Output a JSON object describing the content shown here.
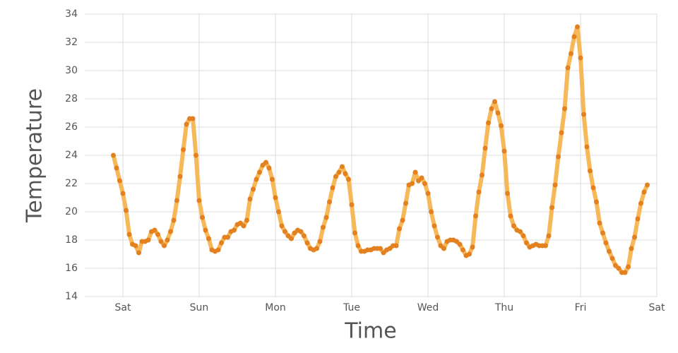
{
  "chart_data": {
    "type": "line",
    "x_label": "Time",
    "y_label": "Temperature",
    "x": [
      -3,
      -2,
      -1,
      0,
      1,
      2,
      3,
      4,
      5,
      6,
      7,
      8,
      9,
      10,
      11,
      12,
      13,
      14,
      15,
      16,
      17,
      18,
      19,
      20,
      21,
      22,
      23,
      24,
      25,
      26,
      27,
      28,
      29,
      30,
      31,
      32,
      33,
      34,
      35,
      36,
      37,
      38,
      39,
      40,
      41,
      42,
      43,
      44,
      45,
      46,
      47,
      48,
      49,
      50,
      51,
      52,
      53,
      54,
      55,
      56,
      57,
      58,
      59,
      60,
      61,
      62,
      63,
      64,
      65,
      66,
      67,
      68,
      69,
      70,
      71,
      72,
      73,
      74,
      75,
      76,
      77,
      78,
      79,
      80,
      81,
      82,
      83,
      84,
      85,
      86,
      87,
      88,
      89,
      90,
      91,
      92,
      93,
      94,
      95,
      96,
      97,
      98,
      99,
      100,
      101,
      102,
      103,
      104,
      105,
      106,
      107,
      108,
      109,
      110,
      111,
      112,
      113,
      114,
      115,
      116,
      117,
      118,
      119,
      120,
      121,
      122,
      123,
      124,
      125,
      126,
      127,
      128,
      129,
      130,
      131,
      132,
      133,
      134,
      135,
      136,
      137,
      138,
      139,
      140,
      141,
      142,
      143,
      144,
      145,
      146,
      147,
      148,
      149,
      150,
      151,
      152,
      153,
      154,
      155,
      156,
      157,
      158,
      159,
      160,
      161,
      162,
      163,
      164,
      165
    ],
    "values": [
      24.0,
      23.1,
      22.2,
      21.3,
      20.1,
      18.4,
      17.7,
      17.6,
      17.1,
      17.9,
      17.9,
      18.0,
      18.6,
      18.7,
      18.4,
      17.9,
      17.6,
      18.0,
      18.6,
      19.4,
      20.8,
      22.5,
      24.4,
      26.2,
      26.6,
      26.6,
      24.0,
      20.8,
      19.6,
      18.7,
      18.1,
      17.3,
      17.2,
      17.3,
      17.8,
      18.2,
      18.2,
      18.6,
      18.7,
      19.1,
      19.2,
      19.0,
      19.4,
      20.9,
      21.6,
      22.3,
      22.8,
      23.3,
      23.5,
      23.1,
      22.3,
      21.0,
      20.0,
      19.0,
      18.6,
      18.3,
      18.1,
      18.5,
      18.7,
      18.6,
      18.3,
      17.8,
      17.4,
      17.3,
      17.4,
      17.9,
      18.9,
      19.6,
      20.7,
      21.7,
      22.5,
      22.8,
      23.2,
      22.7,
      22.3,
      20.5,
      18.5,
      17.6,
      17.2,
      17.2,
      17.3,
      17.3,
      17.4,
      17.4,
      17.4,
      17.1,
      17.3,
      17.4,
      17.6,
      17.6,
      18.8,
      19.4,
      20.6,
      21.9,
      22.0,
      22.8,
      22.2,
      22.4,
      22.0,
      21.3,
      20.0,
      19.0,
      18.2,
      17.6,
      17.4,
      17.9,
      18.0,
      18.0,
      17.9,
      17.7,
      17.3,
      16.9,
      17.0,
      17.5,
      19.7,
      21.4,
      22.6,
      24.5,
      26.3,
      27.3,
      27.8,
      27.0,
      26.1,
      24.3,
      21.3,
      19.7,
      19.0,
      18.7,
      18.6,
      18.3,
      17.8,
      17.5,
      17.6,
      17.7,
      17.6,
      17.6,
      17.6,
      18.3,
      20.3,
      21.9,
      23.9,
      25.6,
      27.3,
      30.2,
      31.2,
      32.4,
      33.1,
      30.9,
      26.9,
      24.6,
      22.9,
      21.7,
      20.7,
      19.2,
      18.5,
      17.8,
      17.2,
      16.7,
      16.2,
      16.0,
      15.7,
      15.7,
      16.1,
      17.4,
      18.2,
      19.5,
      20.6,
      21.4,
      21.9
    ],
    "line_color": "#f7b85a",
    "marker_color": "#e3801f",
    "xlim": [
      -12,
      168
    ],
    "xticks": [
      {
        "value": 0,
        "label": "Sat"
      },
      {
        "value": 24,
        "label": "Sun"
      },
      {
        "value": 48,
        "label": "Mon"
      },
      {
        "value": 72,
        "label": "Tue"
      },
      {
        "value": 96,
        "label": "Wed"
      },
      {
        "value": 120,
        "label": "Thu"
      },
      {
        "value": 144,
        "label": "Fri"
      },
      {
        "value": 168,
        "label": "Sat"
      }
    ],
    "ylim": [
      14,
      34
    ],
    "yticks": [
      14,
      16,
      18,
      20,
      22,
      24,
      26,
      28,
      30,
      32,
      34
    ],
    "grid": true
  }
}
